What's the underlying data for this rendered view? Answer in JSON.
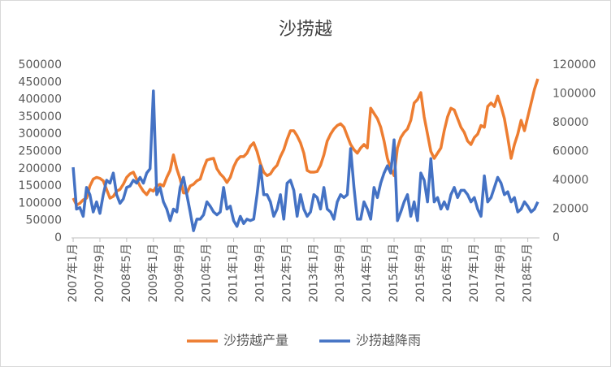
{
  "chart_data": {
    "type": "line",
    "title": "沙捞越",
    "categories": [
      "2007年1月",
      null,
      null,
      null,
      null,
      null,
      null,
      null,
      "2007年9月",
      null,
      null,
      null,
      null,
      null,
      null,
      null,
      "2008年5月",
      null,
      null,
      null,
      null,
      null,
      null,
      null,
      "2009年1月",
      null,
      null,
      null,
      null,
      null,
      null,
      null,
      "2009年9月",
      null,
      null,
      null,
      null,
      null,
      null,
      null,
      "2010年5月",
      null,
      null,
      null,
      null,
      null,
      null,
      null,
      "2011年1月",
      null,
      null,
      null,
      null,
      null,
      null,
      null,
      "2011年9月",
      null,
      null,
      null,
      null,
      null,
      null,
      null,
      "2012年5月",
      null,
      null,
      null,
      null,
      null,
      null,
      null,
      "2013年1月",
      null,
      null,
      null,
      null,
      null,
      null,
      null,
      "2013年9月",
      null,
      null,
      null,
      null,
      null,
      null,
      null,
      "2014年5月",
      null,
      null,
      null,
      null,
      null,
      null,
      null,
      "2015年1月",
      null,
      null,
      null,
      null,
      null,
      null,
      null,
      "2015年9月",
      null,
      null,
      null,
      null,
      null,
      null,
      null,
      "2016年5月",
      null,
      null,
      null,
      null,
      null,
      null,
      null,
      "2017年1月",
      null,
      null,
      null,
      null,
      null,
      null,
      null,
      "2017年9月",
      null,
      null,
      null,
      null,
      null,
      null,
      null,
      "2018年5月",
      null,
      null,
      null
    ],
    "series": [
      {
        "name": "沙捞越产量",
        "color": "#ed7d31",
        "values": [
          115000,
          95000,
          100000,
          110000,
          115000,
          150000,
          170000,
          175000,
          172000,
          165000,
          140000,
          115000,
          120000,
          135000,
          140000,
          155000,
          175000,
          185000,
          190000,
          170000,
          150000,
          135000,
          125000,
          140000,
          135000,
          150000,
          155000,
          150000,
          175000,
          195000,
          240000,
          200000,
          170000,
          130000,
          130000,
          150000,
          155000,
          165000,
          170000,
          200000,
          225000,
          228000,
          230000,
          200000,
          185000,
          175000,
          160000,
          175000,
          205000,
          225000,
          235000,
          235000,
          245000,
          265000,
          275000,
          250000,
          215000,
          190000,
          180000,
          185000,
          200000,
          210000,
          235000,
          255000,
          285000,
          310000,
          310000,
          295000,
          275000,
          245000,
          195000,
          190000,
          190000,
          192000,
          210000,
          240000,
          280000,
          300000,
          315000,
          325000,
          330000,
          320000,
          295000,
          270000,
          255000,
          245000,
          260000,
          270000,
          260000,
          375000,
          360000,
          345000,
          320000,
          280000,
          230000,
          200000,
          180000,
          260000,
          290000,
          305000,
          315000,
          340000,
          390000,
          400000,
          420000,
          350000,
          300000,
          250000,
          230000,
          245000,
          260000,
          310000,
          350000,
          375000,
          370000,
          345000,
          320000,
          305000,
          280000,
          270000,
          290000,
          300000,
          325000,
          320000,
          380000,
          390000,
          380000,
          410000,
          380000,
          345000,
          290000,
          230000,
          270000,
          300000,
          340000,
          310000,
          350000,
          390000,
          430000,
          460000
        ]
      },
      {
        "name": "沙捞越降雨",
        "color": "#4472c4",
        "axis": "y2",
        "values": [
          49000,
          20000,
          21000,
          15000,
          35000,
          30000,
          18000,
          25000,
          17000,
          30000,
          40000,
          38000,
          45000,
          30000,
          24000,
          27000,
          35000,
          36000,
          40000,
          38000,
          42000,
          38000,
          45000,
          48000,
          102000,
          30000,
          35000,
          25000,
          20000,
          12000,
          20000,
          18000,
          35000,
          42000,
          30000,
          18000,
          5000,
          13000,
          13000,
          16000,
          25000,
          22000,
          18000,
          16000,
          18000,
          35000,
          20000,
          22000,
          12000,
          8000,
          15000,
          10000,
          13000,
          12000,
          13000,
          30000,
          50000,
          30000,
          30000,
          25000,
          15000,
          20000,
          30000,
          13000,
          38000,
          40000,
          33000,
          15000,
          30000,
          20000,
          15000,
          18000,
          30000,
          28000,
          20000,
          35000,
          20000,
          18000,
          13000,
          25000,
          30000,
          28000,
          30000,
          62000,
          35000,
          13000,
          13000,
          25000,
          20000,
          13000,
          35000,
          28000,
          38000,
          45000,
          50000,
          45000,
          68000,
          12000,
          18000,
          25000,
          30000,
          15000,
          25000,
          12000,
          45000,
          40000,
          25000,
          55000,
          25000,
          28000,
          20000,
          25000,
          20000,
          30000,
          35000,
          28000,
          33000,
          33000,
          30000,
          25000,
          28000,
          20000,
          15000,
          43000,
          25000,
          28000,
          35000,
          42000,
          38000,
          30000,
          32000,
          25000,
          28000,
          18000,
          20000,
          25000,
          22000,
          18000,
          20000,
          25000
        ]
      }
    ],
    "ylim": [
      0,
      500000
    ],
    "yticks": [
      0,
      50000,
      100000,
      150000,
      200000,
      250000,
      300000,
      350000,
      400000,
      450000,
      500000
    ],
    "y2lim": [
      0,
      120000
    ],
    "y2ticks": [
      0,
      20000,
      40000,
      60000,
      80000,
      100000,
      120000
    ],
    "legend": "bottom"
  }
}
